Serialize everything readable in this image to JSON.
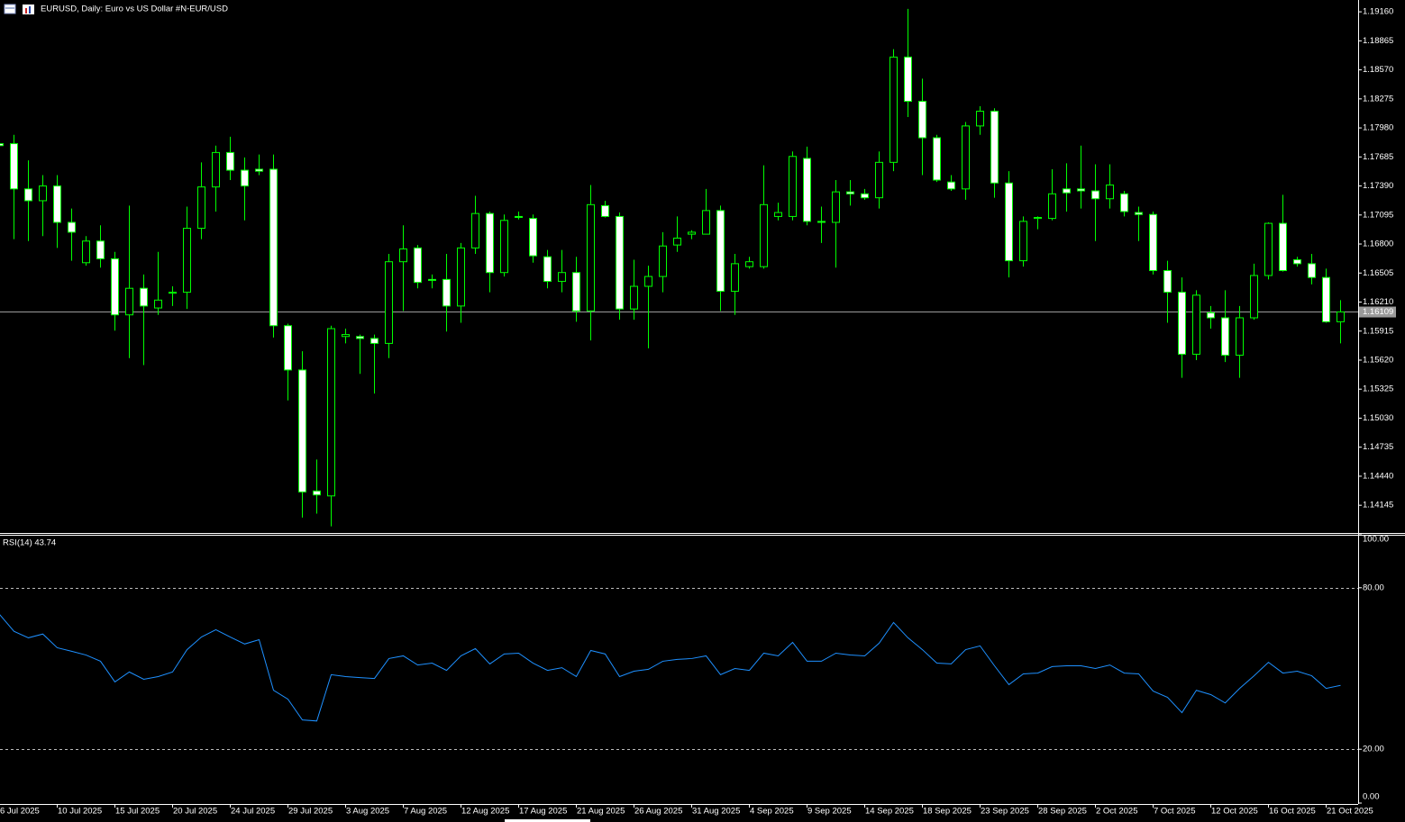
{
  "chart_data": [
    {
      "type": "candlestick",
      "title": "EURUSD, Daily:  Euro vs US Dollar #N-EUR/USD",
      "categories": [
        "6 Jul 2025",
        null,
        null,
        null,
        "10 Jul 2025",
        null,
        null,
        null,
        "15 Jul 2025",
        null,
        null,
        null,
        "20 Jul 2025",
        null,
        null,
        null,
        "24 Jul 2025",
        null,
        null,
        null,
        "29 Jul 2025",
        null,
        null,
        null,
        "3 Aug 2025",
        null,
        null,
        null,
        "7 Aug 2025",
        null,
        null,
        null,
        "12 Aug 2025",
        null,
        null,
        null,
        "17 Aug 2025",
        null,
        null,
        null,
        "21 Aug 2025",
        null,
        null,
        null,
        "26 Aug 2025",
        null,
        null,
        null,
        "31 Aug 2025",
        null,
        null,
        null,
        "4 Sep 2025",
        null,
        null,
        null,
        "9 Sep 2025",
        null,
        null,
        null,
        "14 Sep 2025",
        null,
        null,
        null,
        "18 Sep 2025",
        null,
        null,
        null,
        "23 Sep 2025",
        null,
        null,
        null,
        "28 Sep 2025",
        null,
        null,
        null,
        "2 Oct 2025",
        null,
        null,
        null,
        "7 Oct 2025",
        null,
        null,
        null,
        "12 Oct 2025",
        null,
        null,
        null,
        "16 Oct 2025",
        null,
        null,
        null,
        "21 Oct 2025",
        null
      ],
      "open": [
        1.1782,
        1.1782,
        1.1736,
        1.1724,
        1.1739,
        1.1702,
        1.1661,
        1.1683,
        1.1665,
        1.1608,
        1.1635,
        1.1615,
        1.163,
        1.1631,
        1.1696,
        1.1738,
        1.1773,
        1.1755,
        1.1756,
        1.1756,
        1.1597,
        1.1552,
        1.1429,
        1.1424,
        1.1586,
        1.1586,
        1.1584,
        1.1579,
        1.1662,
        1.1676,
        1.1644,
        1.1644,
        1.1617,
        1.1676,
        1.1711,
        1.1651,
        1.1708,
        1.1706,
        1.1667,
        1.1642,
        1.1651,
        1.1612,
        1.1719,
        1.1708,
        1.1614,
        1.1637,
        1.1647,
        1.1679,
        1.169,
        1.169,
        1.1714,
        1.1632,
        1.1657,
        1.1657,
        1.1708,
        1.1708,
        1.1767,
        1.1703,
        1.1702,
        1.1733,
        1.1731,
        1.1727,
        1.1763,
        1.187,
        1.1825,
        1.1788,
        1.1743,
        1.1736,
        1.18,
        1.1815,
        1.1742,
        1.1663,
        1.1706,
        1.1706,
        1.1736,
        1.1736,
        1.1734,
        1.1726,
        1.1731,
        1.1712,
        1.171,
        1.1653,
        1.1631,
        1.1568,
        1.161,
        1.1605,
        1.1567,
        1.1605,
        1.1648,
        1.1701,
        1.1664,
        1.166,
        1.1646,
        1.1601
      ],
      "high": [
        1.1786,
        1.1791,
        1.1765,
        1.175,
        1.175,
        1.1716,
        1.1688,
        1.1699,
        1.1672,
        1.1719,
        1.1649,
        1.1672,
        1.1637,
        1.1718,
        1.1763,
        1.178,
        1.1789,
        1.1768,
        1.1771,
        1.1771,
        1.1599,
        1.1571,
        1.1461,
        1.1597,
        1.1594,
        1.1588,
        1.1588,
        1.167,
        1.1699,
        1.1679,
        1.1649,
        1.167,
        1.1681,
        1.1729,
        1.1713,
        1.171,
        1.1713,
        1.171,
        1.1674,
        1.1674,
        1.1667,
        1.174,
        1.1724,
        1.1712,
        1.1664,
        1.1658,
        1.1692,
        1.1708,
        1.1694,
        1.1736,
        1.1719,
        1.167,
        1.1667,
        1.176,
        1.1722,
        1.1774,
        1.1779,
        1.1718,
        1.1745,
        1.1745,
        1.1736,
        1.1774,
        1.1878,
        1.1919,
        1.1848,
        1.1791,
        1.175,
        1.1804,
        1.182,
        1.1818,
        1.1754,
        1.1708,
        1.1708,
        1.1756,
        1.1762,
        1.178,
        1.1761,
        1.1761,
        1.1734,
        1.1718,
        1.1713,
        1.1663,
        1.1646,
        1.1633,
        1.1617,
        1.1633,
        1.1617,
        1.166,
        1.1702,
        1.173,
        1.1667,
        1.167,
        1.1655,
        1.1623
      ],
      "low": [
        1.1777,
        1.1685,
        1.1683,
        1.1688,
        1.1676,
        1.1663,
        1.1658,
        1.1656,
        1.1592,
        1.1564,
        1.1557,
        1.1608,
        1.1617,
        1.1614,
        1.1685,
        1.1713,
        1.1745,
        1.1704,
        1.175,
        1.1585,
        1.1521,
        1.1402,
        1.1406,
        1.1393,
        1.1579,
        1.1548,
        1.1528,
        1.1564,
        1.1612,
        1.1635,
        1.1635,
        1.1591,
        1.16,
        1.167,
        1.1631,
        1.1647,
        1.1705,
        1.1661,
        1.1635,
        1.1631,
        1.1601,
        1.1582,
        1.1707,
        1.1603,
        1.1603,
        1.1574,
        1.1631,
        1.1672,
        1.1685,
        1.169,
        1.1612,
        1.1608,
        1.1655,
        1.1655,
        1.1704,
        1.1704,
        1.1699,
        1.1681,
        1.1656,
        1.1719,
        1.1725,
        1.1716,
        1.1754,
        1.1809,
        1.175,
        1.1743,
        1.1734,
        1.1725,
        1.1791,
        1.1727,
        1.1646,
        1.1657,
        1.1695,
        1.1704,
        1.1713,
        1.1716,
        1.1683,
        1.1716,
        1.1708,
        1.1683,
        1.1649,
        1.16,
        1.1544,
        1.1562,
        1.1594,
        1.156,
        1.1544,
        1.1603,
        1.1644,
        1.1652,
        1.1657,
        1.1639,
        1.16,
        1.1579
      ],
      "close": [
        1.178,
        1.1736,
        1.1724,
        1.1739,
        1.1702,
        1.1692,
        1.1683,
        1.1665,
        1.1608,
        1.1635,
        1.1617,
        1.1623,
        1.1631,
        1.1696,
        1.1738,
        1.1773,
        1.1755,
        1.1739,
        1.1754,
        1.1597,
        1.1552,
        1.1428,
        1.1425,
        1.1594,
        1.1588,
        1.1584,
        1.1579,
        1.1662,
        1.1675,
        1.1641,
        1.1643,
        1.1617,
        1.1676,
        1.1711,
        1.1651,
        1.1704,
        1.1707,
        1.1668,
        1.1642,
        1.1651,
        1.1612,
        1.172,
        1.1708,
        1.1614,
        1.1637,
        1.1647,
        1.1678,
        1.1686,
        1.1692,
        1.1714,
        1.1632,
        1.166,
        1.1662,
        1.172,
        1.1712,
        1.1769,
        1.1703,
        1.1702,
        1.1733,
        1.1731,
        1.1727,
        1.1763,
        1.187,
        1.1825,
        1.1788,
        1.1745,
        1.1736,
        1.18,
        1.1815,
        1.1742,
        1.1663,
        1.1703,
        1.1707,
        1.1731,
        1.1732,
        1.1734,
        1.1726,
        1.174,
        1.1713,
        1.171,
        1.1653,
        1.1631,
        1.1568,
        1.1628,
        1.1605,
        1.1567,
        1.1605,
        1.1648,
        1.1701,
        1.1653,
        1.166,
        1.1646,
        1.1601,
        1.1611
      ],
      "color": "#00ff00",
      "up_fill": "#000000",
      "down_fill": "#ffffff",
      "ylim": [
        1.13863,
        1.1928
      ],
      "yticks": [
        {
          "value": 1.1916,
          "label": "1.19160"
        },
        {
          "value": 1.18865,
          "label": "1.18865"
        },
        {
          "value": 1.1857,
          "label": "1.18570"
        },
        {
          "value": 1.18275,
          "label": "1.18275"
        },
        {
          "value": 1.1798,
          "label": "1.17980"
        },
        {
          "value": 1.17685,
          "label": "1.17685"
        },
        {
          "value": 1.1739,
          "label": "1.17390"
        },
        {
          "value": 1.17095,
          "label": "1.17095"
        },
        {
          "value": 1.168,
          "label": "1.16800"
        },
        {
          "value": 1.16505,
          "label": "1.16505"
        },
        {
          "value": 1.1621,
          "label": "1.16210"
        },
        {
          "value": 1.15915,
          "label": "1.15915"
        },
        {
          "value": 1.1562,
          "label": "1.15620"
        },
        {
          "value": 1.15325,
          "label": "1.15325"
        },
        {
          "value": 1.1503,
          "label": "1.15030"
        },
        {
          "value": 1.14735,
          "label": "1.14735"
        },
        {
          "value": 1.1444,
          "label": "1.14440"
        },
        {
          "value": 1.14145,
          "label": "1.14145"
        }
      ],
      "price_line": {
        "value": 1.16109,
        "label": "1.16109"
      }
    },
    {
      "type": "line",
      "title": "RSI(14) 43.74",
      "color": "#1e90ff",
      "values": [
        70.1,
        63.8,
        61.4,
        62.8,
        57.7,
        56.4,
        55.0,
        52.7,
        45.0,
        48.7,
        46.0,
        47.0,
        48.7,
        57.0,
        61.7,
        64.4,
        61.7,
        59.1,
        60.7,
        41.9,
        38.6,
        30.9,
        30.5,
        47.7,
        47.0,
        46.6,
        46.3,
        53.7,
        54.7,
        51.3,
        52.0,
        49.3,
        54.7,
        57.4,
        51.7,
        55.4,
        55.7,
        52.0,
        49.3,
        50.3,
        47.0,
        56.7,
        55.4,
        47.0,
        49.0,
        49.7,
        52.7,
        53.4,
        53.7,
        54.7,
        47.7,
        50.0,
        49.3,
        55.7,
        54.7,
        59.7,
        52.7,
        52.7,
        55.7,
        55.0,
        54.7,
        59.4,
        67.1,
        61.4,
        57.0,
        52.0,
        51.7,
        57.0,
        58.4,
        51.0,
        44.0,
        48.0,
        48.3,
        50.7,
        51.0,
        51.0,
        50.0,
        51.3,
        48.3,
        48.0,
        41.6,
        39.3,
        33.6,
        41.9,
        40.3,
        37.2,
        42.6,
        47.3,
        52.3,
        48.3,
        49.0,
        47.3,
        42.6,
        43.74
      ],
      "ylim": [
        0,
        100
      ],
      "yticks": [
        {
          "value": 100,
          "label": "100.00"
        },
        {
          "value": 80,
          "label": "80.00"
        },
        {
          "value": 20,
          "label": "20.00"
        },
        {
          "value": 0,
          "label": "0.00"
        }
      ],
      "levels": [
        80,
        20
      ]
    }
  ]
}
